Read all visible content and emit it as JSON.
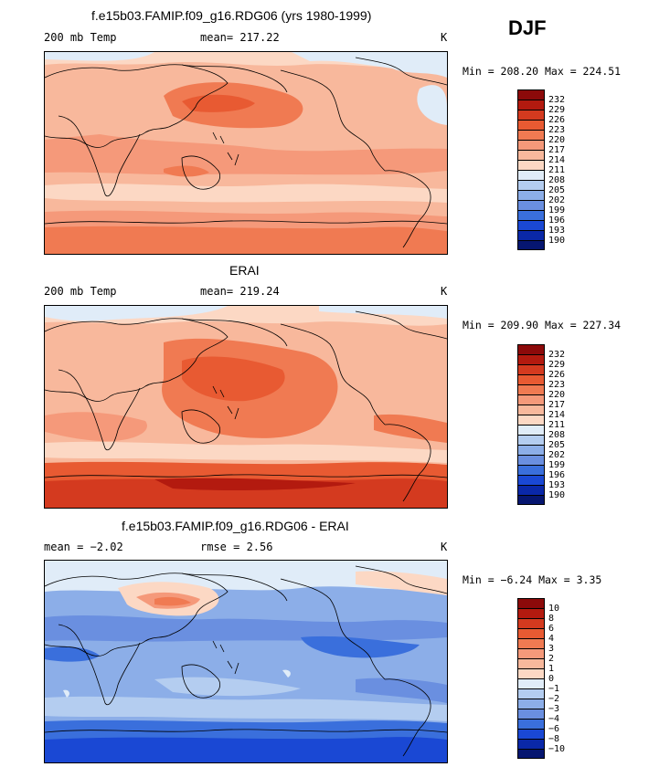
{
  "season": "DJF",
  "panels": [
    {
      "title": "f.e15b03.FAMIP.f09_g16.RDG06 (yrs 1980-1999)",
      "left_label": "200 mb Temp",
      "center_label": "mean= 217.22",
      "right_label": "K",
      "minmax": "Min = 208.20 Max = 224.51",
      "colorbar_labels": [
        "232",
        "229",
        "226",
        "223",
        "220",
        "217",
        "214",
        "211",
        "208",
        "205",
        "202",
        "199",
        "196",
        "193",
        "190"
      ]
    },
    {
      "title": "ERAI",
      "left_label": "200 mb Temp",
      "center_label": "mean= 219.24",
      "right_label": "K",
      "minmax": "Min = 209.90 Max = 227.34",
      "colorbar_labels": [
        "232",
        "229",
        "226",
        "223",
        "220",
        "217",
        "214",
        "211",
        "208",
        "205",
        "202",
        "199",
        "196",
        "193",
        "190"
      ]
    },
    {
      "title": "f.e15b03.FAMIP.f09_g16.RDG06 - ERAI",
      "left_label": "mean =  −2.02",
      "center_label": "rmse =   2.56",
      "right_label": "K",
      "minmax": "Min = −6.24 Max =   3.35",
      "colorbar_labels": [
        "10",
        "8",
        "6",
        "4",
        "3",
        "2",
        "1",
        "0",
        "−1",
        "−2",
        "−3",
        "−4",
        "−6",
        "−8",
        "−10"
      ]
    }
  ],
  "colors": {
    "scale": [
      "#8c0a0a",
      "#b31a0f",
      "#d43a1f",
      "#e85a32",
      "#f07a52",
      "#f5997a",
      "#f8b89c",
      "#fcd8c4",
      "#e0ecf8",
      "#b4cdf0",
      "#8caee8",
      "#6a8fe0",
      "#3a6fdc",
      "#1a48d4",
      "#0a28a8",
      "#061670"
    ]
  }
}
